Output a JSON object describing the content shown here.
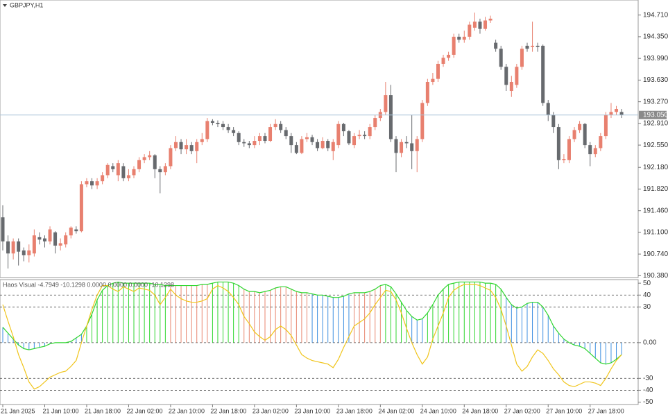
{
  "chart_data": [
    {
      "type": "candlestick",
      "title": "GBPJPY,H1",
      "open": [
        191.35,
        190.95,
        190.75,
        190.95,
        190.8,
        190.72,
        190.75,
        191.02,
        191,
        190.95,
        191.1,
        190.88,
        190.9,
        191.05,
        191.15,
        191.12,
        191.9,
        191.95,
        191.88,
        191.95,
        192.05,
        192.2,
        192.05,
        192.2,
        192,
        192.05,
        192.15,
        192.3,
        192.35,
        192.38,
        192.15,
        192.1,
        192.2,
        192.5,
        192.6,
        192.48,
        192.55,
        192.45,
        192.6,
        192.65,
        192.95,
        192.92,
        192.9,
        192.85,
        192.8,
        192.75,
        192.6,
        192.58,
        192.55,
        192.62,
        192.7,
        192.62,
        192.85,
        192.9,
        192.8,
        192.7,
        192.55,
        192.42,
        192.65,
        192.68,
        192.6,
        192.5,
        192.62,
        192.45,
        192.55,
        192.9,
        192.78,
        192.55,
        192.7,
        192.72,
        192.7,
        192.85,
        193,
        193.1,
        193.38,
        192.65,
        192.42,
        192.6,
        192.58,
        192.45,
        192.65,
        193.25,
        193.6,
        193.65,
        193.9,
        194,
        194.05,
        194.35,
        194.3,
        194.35,
        194.5,
        194.6,
        194.48,
        194.62,
        194.25,
        194.15,
        193.85,
        193.45,
        193.55,
        193.85,
        194.2,
        194.18,
        194.2,
        194.2,
        193.25,
        193.05,
        192.85,
        192.3,
        192.3,
        192.65,
        192.8,
        192.9,
        192.55,
        192.4,
        192.5,
        192.7,
        193.05,
        193.1,
        193.1
      ],
      "high": [
        191.55,
        191.05,
        191,
        191,
        190.85,
        190.9,
        191.15,
        191.1,
        191.05,
        191.2,
        191.12,
        191,
        191.1,
        191.2,
        191.2,
        191.95,
        192,
        192,
        192,
        192.1,
        192.25,
        192.25,
        192.3,
        192.25,
        192.15,
        192.2,
        192.35,
        192.4,
        192.45,
        192.4,
        192.2,
        192.25,
        192.55,
        192.7,
        192.65,
        192.65,
        192.6,
        192.65,
        192.75,
        193,
        192.98,
        192.96,
        192.95,
        192.9,
        192.85,
        192.78,
        192.65,
        192.62,
        192.7,
        192.75,
        192.75,
        192.9,
        192.98,
        192.95,
        192.85,
        192.75,
        192.6,
        192.7,
        192.75,
        192.72,
        192.65,
        192.68,
        192.65,
        192.65,
        192.95,
        192.92,
        192.8,
        192.75,
        192.8,
        192.78,
        192.9,
        193.05,
        193.15,
        193.6,
        193.55,
        192.7,
        192.65,
        192.7,
        193.05,
        192.7,
        193.3,
        193.65,
        193.75,
        193.95,
        194.05,
        194.1,
        194.4,
        194.4,
        194.45,
        194.6,
        194.75,
        194.65,
        194.68,
        194.7,
        194.3,
        194.2,
        193.9,
        193.7,
        193.9,
        194.2,
        194.25,
        194.6,
        194.25,
        194.22,
        193.3,
        193.1,
        192.9,
        192.4,
        192.7,
        192.85,
        192.95,
        192.92,
        192.6,
        192.55,
        192.75,
        193.1,
        193.25,
        193.2,
        193.15
      ],
      "low": [
        190.8,
        190.5,
        190.65,
        190.55,
        190.62,
        190.6,
        190.7,
        190.9,
        190.85,
        190.9,
        190.75,
        190.8,
        190.85,
        191,
        191.08,
        191.1,
        191.85,
        191.82,
        191.82,
        191.9,
        192,
        192.1,
        191.95,
        191.95,
        191.95,
        192,
        192.1,
        192.25,
        192.3,
        192,
        191.75,
        192.05,
        192.15,
        192.45,
        192.4,
        192.4,
        192.4,
        192.25,
        192.55,
        192.6,
        192.88,
        192.85,
        192.8,
        192.75,
        192.7,
        192.55,
        192.52,
        192.5,
        192.5,
        192.55,
        192.58,
        192.6,
        192.8,
        192.75,
        192.65,
        192.42,
        192.4,
        192.4,
        192.6,
        192.55,
        192.45,
        192.48,
        192.45,
        192.3,
        192.5,
        192.7,
        192.55,
        192.5,
        192.65,
        192.65,
        192.65,
        192.8,
        192.95,
        193.05,
        192.6,
        192.1,
        192.35,
        192.5,
        192.15,
        192.1,
        192.6,
        193.2,
        193.55,
        193.6,
        193.85,
        193.95,
        194,
        194.25,
        194.25,
        194.3,
        194.45,
        194.4,
        194.45,
        194.58,
        194.1,
        193.8,
        193.45,
        193.35,
        193.5,
        193.8,
        194.1,
        194.1,
        194.1,
        193.2,
        192.95,
        192.75,
        192.15,
        192.25,
        192.25,
        192.6,
        192.75,
        192.5,
        192.2,
        192.35,
        192.45,
        192.65,
        193,
        193.05,
        193
      ],
      "close": [
        190.95,
        190.75,
        190.95,
        190.78,
        190.72,
        190.8,
        191.05,
        190.98,
        190.95,
        191.15,
        190.88,
        190.92,
        191.05,
        191.18,
        191.12,
        191.9,
        191.95,
        191.88,
        191.95,
        192.05,
        192.22,
        192.15,
        192.25,
        192,
        192.05,
        192.15,
        192.3,
        192.35,
        192.38,
        192.15,
        192.1,
        192.2,
        192.5,
        192.6,
        192.48,
        192.55,
        192.45,
        192.6,
        192.65,
        192.95,
        192.92,
        192.9,
        192.85,
        192.8,
        192.75,
        192.6,
        192.58,
        192.55,
        192.62,
        192.7,
        192.62,
        192.85,
        192.9,
        192.8,
        192.7,
        192.55,
        192.42,
        192.65,
        192.68,
        192.6,
        192.5,
        192.62,
        192.5,
        192.6,
        192.9,
        192.78,
        192.58,
        192.7,
        192.72,
        192.7,
        192.85,
        193,
        193.1,
        193.38,
        192.65,
        192.42,
        192.6,
        192.58,
        192.45,
        192.65,
        193.25,
        193.6,
        193.65,
        193.9,
        194,
        194.05,
        194.35,
        194.3,
        194.35,
        194.55,
        194.6,
        194.48,
        194.62,
        194.65,
        194.15,
        193.85,
        193.55,
        193.6,
        193.85,
        194.15,
        194.15,
        194.2,
        194.18,
        193.25,
        193.05,
        192.85,
        192.3,
        192.32,
        192.65,
        192.8,
        192.9,
        192.55,
        192.4,
        192.5,
        192.7,
        193.05,
        193.1,
        193.15,
        193.05
      ],
      "up_color": "#e8806f",
      "down_color": "#676a6e",
      "ylim": [
        190.35,
        194.96
      ],
      "yticks": [
        {
          "value": 194.71,
          "label": "194.710"
        },
        {
          "value": 194.35,
          "label": "194.350"
        },
        {
          "value": 193.99,
          "label": "193.990"
        },
        {
          "value": 193.63,
          "label": "193.630"
        },
        {
          "value": 193.27,
          "label": "193.270"
        },
        {
          "value": 192.91,
          "label": "192.910"
        },
        {
          "value": 192.55,
          "label": "192.550"
        },
        {
          "value": 192.18,
          "label": "192.180"
        },
        {
          "value": 191.82,
          "label": "191.820"
        },
        {
          "value": 191.46,
          "label": "191.460"
        },
        {
          "value": 191.1,
          "label": "191.100"
        },
        {
          "value": 190.74,
          "label": "190.740"
        },
        {
          "value": 190.38,
          "label": "190.380"
        }
      ],
      "last_price": {
        "value": 193.05,
        "label": "193.050"
      }
    },
    {
      "type": "oscillator",
      "title": "Haos Visual -4.7949 -10.1298 0.0000 0.0000 0.0000 -10.1298",
      "categories": [
        "21 Jan 2025",
        null,
        null,
        null,
        null,
        null,
        null,
        null,
        "21 Jan 10:00",
        null,
        null,
        null,
        null,
        null,
        null,
        null,
        "21 Jan 18:00",
        null,
        null,
        null,
        null,
        null,
        null,
        null,
        "22 Jan 02:00",
        null,
        null,
        null,
        null,
        null,
        null,
        null,
        "22 Jan 10:00",
        null,
        null,
        null,
        null,
        null,
        null,
        null,
        "22 Jan 18:00",
        null,
        null,
        null,
        null,
        null,
        null,
        null,
        "23 Jan 02:00",
        null,
        null,
        null,
        null,
        null,
        null,
        null,
        "23 Jan 10:00",
        null,
        null,
        null,
        null,
        null,
        null,
        null,
        "23 Jan 18:00",
        null,
        null,
        null,
        null,
        null,
        null,
        null,
        "24 Jan 02:00",
        null,
        null,
        null,
        null,
        null,
        null,
        null,
        "24 Jan 10:00",
        null,
        null,
        null,
        null,
        null,
        null,
        null,
        "24 Jan 18:00",
        null,
        null,
        null,
        null,
        null,
        null,
        null,
        "27 Jan 02:00",
        null,
        null,
        null,
        null,
        null,
        null,
        null,
        "27 Jan 10:00",
        null,
        null,
        null,
        null,
        null,
        null,
        null,
        "27 Jan 18:00",
        null,
        null,
        null,
        null,
        null,
        null
      ],
      "series": [
        {
          "values": [
            13,
            8,
            3,
            -2,
            -5,
            -6,
            -5,
            -4,
            -3,
            -1,
            0,
            0,
            0,
            1,
            4,
            7,
            14,
            24,
            36,
            44,
            48,
            50,
            51,
            50,
            50,
            50,
            50,
            50,
            50,
            49,
            49,
            48,
            48,
            48,
            48,
            48,
            48,
            48,
            49,
            49,
            50,
            51,
            51,
            51,
            50,
            48,
            45,
            43,
            43,
            42,
            43,
            44,
            46,
            47,
            47,
            45,
            43,
            42,
            42,
            41,
            40,
            40,
            39,
            38,
            38,
            39,
            41,
            42,
            42,
            42,
            43,
            45,
            48,
            49,
            47,
            41,
            34,
            27,
            22,
            19,
            20,
            25,
            32,
            40,
            45,
            49,
            50,
            51,
            51,
            51,
            51,
            51,
            50,
            50,
            49,
            45,
            38,
            32,
            29,
            30,
            33,
            34,
            34,
            30,
            23,
            14,
            8,
            3,
            0,
            -2,
            -3,
            -5,
            -9,
            -13,
            -17,
            -18,
            -17,
            -14,
            -10.1298
          ],
          "color": "#2fd62f",
          "bar_colors": [
            "#3b8ee0",
            "#3b8ee0",
            "#3b8ee0",
            "#3b8ee0",
            "#3b8ee0",
            "#3b8ee0",
            "#3b8ee0",
            "#3b8ee0",
            "#3b8ee0",
            "#3b8ee0",
            "#3b8ee0",
            "#3b8ee0",
            "#3b8ee0",
            "#3b8ee0",
            "#3b8ee0",
            "#3b8ee0",
            "#2fd62f",
            "#2fd62f",
            "#2fd62f",
            "#2fd62f",
            "#2fd62f",
            "#2fd62f",
            "#2fd62f",
            "#2fd62f",
            "#2fd62f",
            "#2fd62f",
            "#2fd62f",
            "#2fd62f",
            "#2fd62f",
            "#2fd62f",
            "#2fd62f",
            "#2fd62f",
            "#e8866f",
            "#e8866f",
            "#e8866f",
            "#e8866f",
            "#e8866f",
            "#e8866f",
            "#e8866f",
            "#e8866f",
            "#2fd62f",
            "#2fd62f",
            "#2fd62f",
            "#2fd62f",
            "#2fd62f",
            "#2fd62f",
            "#e8866f",
            "#e8866f",
            "#e8866f",
            "#e8866f",
            "#e8866f",
            "#e8866f",
            "#e8866f",
            "#e8866f",
            "#e8866f",
            "#e8866f",
            "#e8866f",
            "#e8866f",
            "#e8866f",
            "#3b8ee0",
            "#3b8ee0",
            "#3b8ee0",
            "#3b8ee0",
            "#3b8ee0",
            "#3b8ee0",
            "#3b8ee0",
            "#3b8ee0",
            "#e8866f",
            "#e8866f",
            "#e8866f",
            "#e8866f",
            "#e8866f",
            "#e8866f",
            "#2fd62f",
            "#2fd62f",
            "#2fd62f",
            "#2fd62f",
            "#2fd62f",
            "#3b8ee0",
            "#3b8ee0",
            "#3b8ee0",
            "#2fd62f",
            "#2fd62f",
            "#2fd62f",
            "#2fd62f",
            "#2fd62f",
            "#2fd62f",
            "#2fd62f",
            "#2fd62f",
            "#2fd62f",
            "#2fd62f",
            "#2fd62f",
            "#2fd62f",
            "#2fd62f",
            "#2fd62f",
            "#2fd62f",
            "#3b8ee0",
            "#3b8ee0",
            "#3b8ee0",
            "#3b8ee0",
            "#3b8ee0",
            "#3b8ee0",
            "#3b8ee0",
            "#3b8ee0",
            "#3b8ee0",
            "#3b8ee0",
            "#3b8ee0",
            "#3b8ee0",
            "#3b8ee0",
            "#3b8ee0",
            "#3b8ee0",
            "#3b8ee0",
            "#3b8ee0",
            "#3b8ee0",
            "#3b8ee0",
            "#3b8ee0",
            "#3b8ee0",
            "#3b8ee0",
            "#3b8ee0"
          ]
        },
        {
          "values": [
            32,
            18,
            5,
            -10,
            -21,
            -33,
            -39,
            -37,
            -33,
            -29,
            -27,
            -25,
            -24,
            -20,
            -15,
            0,
            14,
            28,
            40,
            48,
            48,
            45,
            43,
            47,
            45,
            43,
            46,
            45,
            44,
            40,
            32,
            38,
            45,
            40,
            37,
            35,
            34,
            34,
            35,
            37,
            45,
            48,
            46,
            43,
            38,
            32,
            22,
            16,
            9,
            5,
            2,
            5,
            11,
            14,
            11,
            6,
            -2,
            -10,
            -13,
            -15,
            -16,
            -17,
            -18,
            -21,
            -14,
            -4,
            5,
            14,
            17,
            20,
            25,
            32,
            38,
            44,
            43,
            36,
            25,
            12,
            0,
            -10,
            -18,
            -12,
            3,
            14,
            25,
            38,
            44,
            47,
            49,
            49,
            49,
            48,
            46,
            44,
            38,
            28,
            14,
            -2,
            -18,
            -24,
            -20,
            -12,
            -6,
            -9,
            -15,
            -22,
            -27,
            -33,
            -36,
            -37,
            -35,
            -33,
            -33,
            -34,
            -36,
            -30,
            -22,
            -15,
            -10.1298
          ],
          "color": "#f0c419"
        }
      ],
      "levels": [
        40,
        30,
        0,
        -30,
        -40
      ],
      "ylim": [
        -52,
        53
      ],
      "yticks": [
        50,
        40,
        30,
        {
          "value": 0,
          "label": "0.00"
        },
        -30,
        -40,
        -50
      ]
    }
  ]
}
